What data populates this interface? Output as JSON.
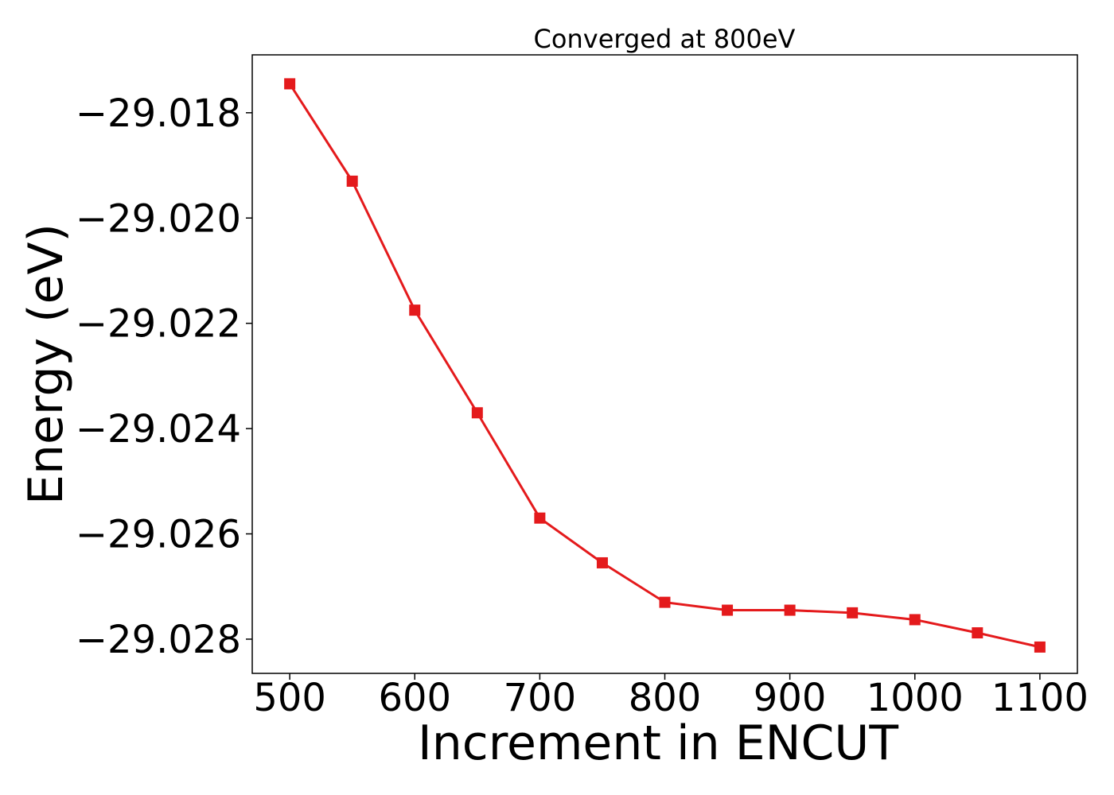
{
  "chart_data": {
    "type": "line",
    "title": "Converged at 800eV",
    "xlabel": "Increment in ENCUT",
    "ylabel": "Energy (eV)",
    "x": [
      500,
      550,
      600,
      650,
      700,
      750,
      800,
      850,
      900,
      950,
      1000,
      1050,
      1100
    ],
    "series": [
      {
        "values": [
          -29.01745,
          -29.0193,
          -29.02175,
          -29.0237,
          -29.0257,
          -29.02655,
          -29.0273,
          -29.02745,
          -29.02745,
          -29.0275,
          -29.02763,
          -29.02788,
          -29.02815
        ],
        "color": "#e41a1c",
        "marker": "square"
      }
    ],
    "xticks": [
      500,
      600,
      700,
      800,
      900,
      1000,
      1100
    ],
    "xtick_labels": [
      "500",
      "600",
      "700",
      "800",
      "900",
      "1000",
      "1100"
    ],
    "yticks": [
      -29.018,
      -29.02,
      -29.022,
      -29.024,
      -29.026,
      -29.028
    ],
    "ytick_labels": [
      "−29.018",
      "−29.020",
      "−29.022",
      "−29.024",
      "−29.026",
      "−29.028"
    ],
    "xlim": [
      470,
      1130
    ],
    "ylim": [
      -29.02865,
      -29.0169
    ],
    "grid": false,
    "legend": "none"
  }
}
